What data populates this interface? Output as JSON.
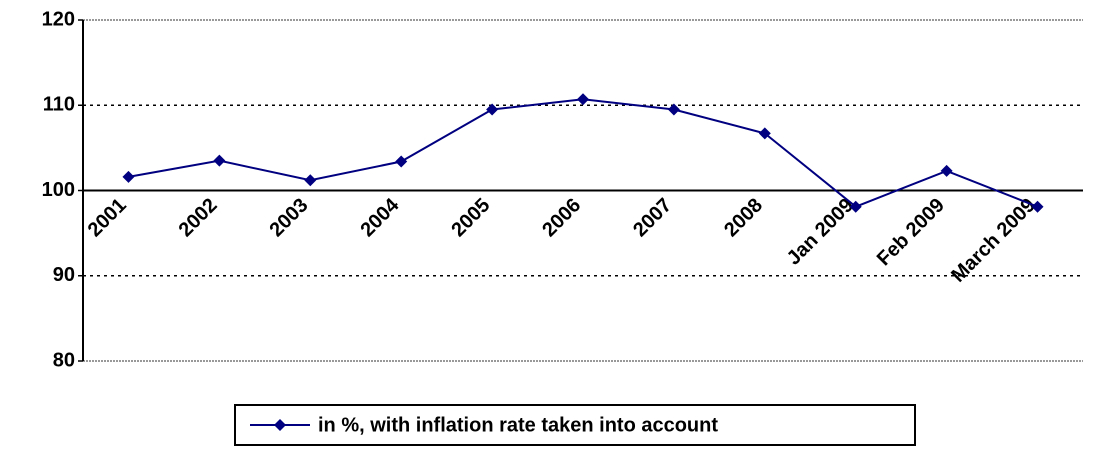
{
  "chart_data": {
    "type": "line",
    "categories": [
      "2001",
      "2002",
      "2003",
      "2004",
      "2005",
      "2006",
      "2007",
      "2008",
      "Jan 2009",
      "Feb 2009",
      "March 2009"
    ],
    "series": [
      {
        "name": "in %, with inflation rate taken into account",
        "color": "#000080",
        "values": [
          101.6,
          103.5,
          101.2,
          103.4,
          109.5,
          110.7,
          109.5,
          106.7,
          98.1,
          102.3,
          98.1
        ]
      }
    ],
    "ylim": [
      80,
      120
    ],
    "yticks": [
      80,
      90,
      100,
      110,
      120
    ],
    "grid": true,
    "x_axis_crosses": 100,
    "legend": "bottom"
  }
}
